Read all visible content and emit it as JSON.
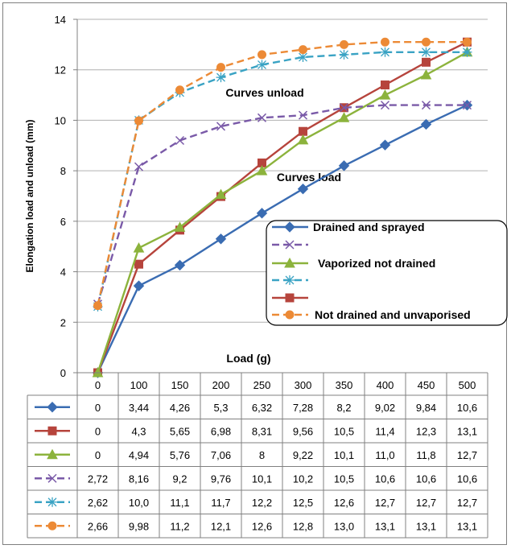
{
  "chart_data": {
    "type": "line",
    "ylabel": "Elongation load and unload  (mm)",
    "xlabel": "Load (g)",
    "ylim": [
      0,
      14
    ],
    "yticks": [
      0,
      2,
      4,
      6,
      8,
      10,
      12,
      14
    ],
    "categories": [
      "0",
      "100",
      "150",
      "200",
      "250",
      "300",
      "350",
      "400",
      "450",
      "500"
    ],
    "grid": "horizontal",
    "legend_position": "right",
    "annotations": [
      "Curves unload",
      "Curves load"
    ],
    "series": [
      {
        "name": "Drained and sprayed",
        "group": "load",
        "color": "#3a6cb2",
        "marker": "diamond",
        "dash": false,
        "values": [
          0,
          3.44,
          4.26,
          5.3,
          6.32,
          7.28,
          8.2,
          9.02,
          9.84,
          10.6
        ],
        "table": [
          "0",
          "3,44",
          "4,26",
          "5,3",
          "6,32",
          "7,28",
          "8,2",
          "9,02",
          "9,84",
          "10,6"
        ]
      },
      {
        "name": "",
        "group": "load",
        "color": "#b6443c",
        "marker": "square",
        "dash": false,
        "values": [
          0,
          4.3,
          5.65,
          6.98,
          8.31,
          9.56,
          10.5,
          11.4,
          12.3,
          13.1
        ],
        "table": [
          "0",
          "4,3",
          "5,65",
          "6,98",
          "8,31",
          "9,56",
          "10,5",
          "11,4",
          "12,3",
          "13,1"
        ]
      },
      {
        "name": "Vaporized not drained",
        "group": "load",
        "color": "#8cb33c",
        "marker": "triangle",
        "dash": false,
        "values": [
          0,
          4.94,
          5.76,
          7.06,
          8,
          9.22,
          10.1,
          11.0,
          11.8,
          12.7
        ],
        "table": [
          "0",
          "4,94",
          "5,76",
          "7,06",
          "8",
          "9,22",
          "10,1",
          "11,0",
          "11,8",
          "12,7"
        ]
      },
      {
        "name": "",
        "group": "unload",
        "color": "#7a5aa8",
        "marker": "x",
        "dash": true,
        "values": [
          2.72,
          8.16,
          9.2,
          9.76,
          10.1,
          10.2,
          10.5,
          10.6,
          10.6,
          10.6
        ],
        "table": [
          "2,72",
          "8,16",
          "9,2",
          "9,76",
          "10,1",
          "10,2",
          "10,5",
          "10,6",
          "10,6",
          "10,6"
        ]
      },
      {
        "name": "",
        "group": "unload",
        "color": "#3aa3c4",
        "marker": "star",
        "dash": true,
        "values": [
          2.62,
          10.0,
          11.1,
          11.7,
          12.2,
          12.5,
          12.6,
          12.7,
          12.7,
          12.7
        ],
        "table": [
          "2,62",
          "10,0",
          "11,1",
          "11,7",
          "12,2",
          "12,5",
          "12,6",
          "12,7",
          "12,7",
          "12,7"
        ]
      },
      {
        "name": "Not drained and unvaporised",
        "group": "unload",
        "color": "#ec8a36",
        "marker": "circle",
        "dash": true,
        "values": [
          2.66,
          9.98,
          11.2,
          12.1,
          12.6,
          12.8,
          13.0,
          13.1,
          13.1,
          13.1
        ],
        "table": [
          "2,66",
          "9,98",
          "11,2",
          "12,1",
          "12,6",
          "12,8",
          "13,0",
          "13,1",
          "13,1",
          "13,1"
        ]
      }
    ],
    "legend_order": [
      0,
      3,
      2,
      4,
      1,
      5
    ]
  }
}
